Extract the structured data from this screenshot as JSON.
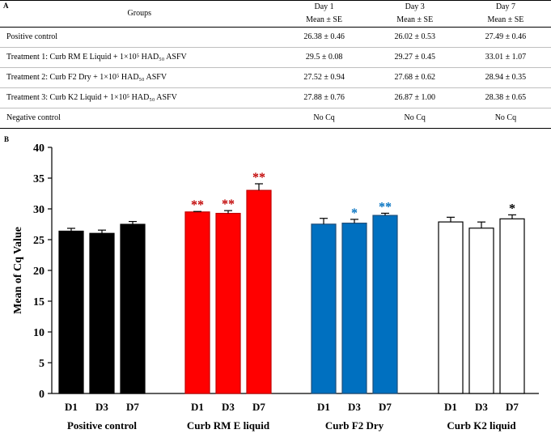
{
  "table": {
    "panel_label": "A",
    "groups_header": "Groups",
    "days": [
      "Day 1",
      "Day 3",
      "Day 7"
    ],
    "stat_label": "Mean ± SE",
    "rows": [
      {
        "group": "Positive control",
        "values": [
          "26.38 ± 0.46",
          "26.02 ± 0.53",
          "27.49 ± 0.46"
        ]
      },
      {
        "group": "Treatment 1: Curb RM E Liquid + 1×10⁵ HAD₅₀ ASFV",
        "values": [
          "29.5 ± 0.08",
          "29.27 ± 0.45",
          "33.01 ± 1.07"
        ]
      },
      {
        "group": "Treatment 2: Curb F2 Dry + 1×10⁵ HAD₅₀ ASFV",
        "values": [
          "27.52 ± 0.94",
          "27.68 ± 0.62",
          "28.94 ± 0.35"
        ]
      },
      {
        "group": "Treatment 3: Curb K2 Liquid + 1×10⁵ HAD₅₀ ASFV",
        "values": [
          "27.88 ± 0.76",
          "26.87 ± 1.00",
          "28.38 ± 0.65"
        ]
      },
      {
        "group": "Negative control",
        "values": [
          "No Cq",
          "No Cq",
          "No Cq"
        ]
      }
    ]
  },
  "chart_data": {
    "type": "bar",
    "panel_label": "B",
    "title": "",
    "xlabel": "",
    "ylabel": "Mean of Cq Value",
    "ylim": [
      0,
      40
    ],
    "yticks": [
      0,
      5,
      10,
      15,
      20,
      25,
      30,
      35,
      40
    ],
    "categories": [
      "D1",
      "D3",
      "D7"
    ],
    "series": [
      {
        "name": "Positive control",
        "fill": "#000000",
        "stroke": "#000000",
        "values": [
          26.38,
          26.02,
          27.49
        ],
        "errors": [
          0.46,
          0.53,
          0.46
        ],
        "marks": [
          "",
          "",
          ""
        ],
        "mark_color": "#000000"
      },
      {
        "name": "Curb  RM  E liquid",
        "fill": "#ff0000",
        "stroke": "#c00000",
        "values": [
          29.5,
          29.27,
          33.01
        ],
        "errors": [
          0.08,
          0.45,
          1.07
        ],
        "marks": [
          "**",
          "**",
          "**"
        ],
        "mark_color": "#c00000"
      },
      {
        "name": "Curb  F2 Dry",
        "fill": "#0070c0",
        "stroke": "#1f4e79",
        "values": [
          27.52,
          27.68,
          28.94
        ],
        "errors": [
          0.94,
          0.62,
          0.35
        ],
        "marks": [
          "",
          "*",
          "**"
        ],
        "mark_color": "#0070c0"
      },
      {
        "name": "Curb  K2 liquid",
        "fill": "#ffffff",
        "stroke": "#000000",
        "values": [
          27.88,
          26.87,
          28.38
        ],
        "errors": [
          0.76,
          1.0,
          0.65
        ],
        "marks": [
          "",
          "",
          "*"
        ],
        "mark_color": "#000000"
      }
    ]
  }
}
